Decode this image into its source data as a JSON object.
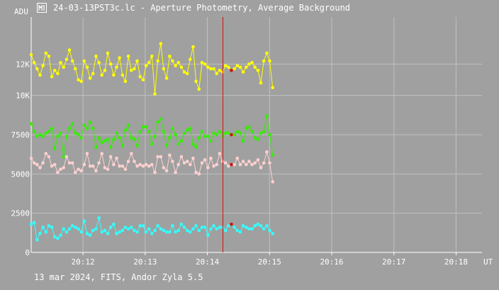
{
  "window": {
    "title": "24-03-13PST3c.lc - Aperture Photometry, Average Background",
    "icon": "photometry-app-icon"
  },
  "footer": {
    "caption": "13 mar 2024, FITS, Andor Zyla 5.5"
  },
  "colors": {
    "background": "#a0a0a0",
    "grid": "#c0c0c0",
    "axis": "#ffffff",
    "text": "#ffffff",
    "cursor": "#d01010",
    "marker": "#d01010"
  },
  "chart_data": {
    "type": "scatter",
    "title": "",
    "ylabel": "ADU",
    "xlabel": "UT",
    "ylim": [
      0,
      15000
    ],
    "xlim": [
      "20:11:10",
      "20:18:25"
    ],
    "y_ticks": [
      0,
      2500,
      5000,
      7500,
      10000,
      12000
    ],
    "y_tick_labels": [
      "0",
      "2500",
      "5000",
      "7500",
      "10K",
      "12K"
    ],
    "x_ticks": [
      "20:12",
      "20:13",
      "20:14",
      "20:15",
      "20:16",
      "20:17",
      "20:18"
    ],
    "x_tick_labels": [
      "20:12",
      "20:13",
      "20:14",
      "20:15",
      "20:16",
      "20:17",
      "20:18"
    ],
    "x_start": "20:11:10",
    "x_end": "20:15:03",
    "cursor_x": "20:14:15",
    "grid": true,
    "legend": "none",
    "series": [
      {
        "color": "#ffff00",
        "values": [
          12600,
          12100,
          11700,
          11300,
          11900,
          12700,
          12500,
          11200,
          11600,
          11400,
          12100,
          11800,
          12300,
          12900,
          12200,
          11700,
          11000,
          10900,
          12200,
          11800,
          11100,
          11400,
          12500,
          12100,
          11300,
          11600,
          12700,
          12000,
          11300,
          11800,
          12400,
          11300,
          10900,
          12500,
          11600,
          11700,
          12200,
          11200,
          11000,
          11900,
          12100,
          12500,
          10100,
          12200,
          13300,
          11700,
          11100,
          12500,
          12200,
          11900,
          12100,
          11800,
          11500,
          11400,
          12300,
          13100,
          10900,
          10400,
          12100,
          12000,
          11800,
          11700,
          11700,
          11400,
          11600,
          11500,
          11900,
          11800,
          11600,
          11700,
          11900,
          11800,
          11500,
          11800,
          12000,
          12100,
          11800,
          11600,
          10800,
          12200,
          12700,
          12200,
          10500
        ]
      },
      {
        "color": "#33ee00",
        "values": [
          8200,
          7700,
          7400,
          7500,
          7400,
          7600,
          7700,
          7900,
          6600,
          7400,
          7600,
          6100,
          7400,
          7900,
          8200,
          7600,
          7500,
          7300,
          8100,
          7900,
          8300,
          7900,
          6700,
          7300,
          7000,
          7100,
          7200,
          6700,
          7200,
          7600,
          7300,
          6800,
          7800,
          8100,
          7300,
          7200,
          6800,
          7700,
          8000,
          8000,
          7700,
          6900,
          7400,
          8300,
          8500,
          7700,
          6800,
          7300,
          7900,
          7500,
          6900,
          7100,
          7600,
          7800,
          7900,
          6900,
          6700,
          7300,
          7700,
          7400,
          7400,
          7100,
          7600,
          7500,
          7700,
          7400,
          7600,
          7600,
          7500,
          7500,
          7700,
          7600,
          7100,
          7900,
          8000,
          7700,
          7300,
          7200,
          7600,
          7700,
          8700,
          7500,
          6200
        ]
      },
      {
        "color": "#ffd0d0",
        "values": [
          6000,
          5700,
          5600,
          5400,
          5700,
          6300,
          6100,
          5500,
          5600,
          5100,
          5300,
          5400,
          6100,
          5700,
          5700,
          5100,
          5300,
          5200,
          5600,
          6300,
          5500,
          5500,
          5200,
          5700,
          6300,
          5400,
          5300,
          6100,
          5600,
          6000,
          5500,
          5500,
          5300,
          5800,
          6300,
          5800,
          5500,
          5600,
          5500,
          5600,
          5500,
          5600,
          5100,
          6100,
          6100,
          5400,
          5200,
          6200,
          5800,
          5100,
          5600,
          6100,
          5700,
          5800,
          5600,
          6000,
          5100,
          5000,
          5700,
          5900,
          5400,
          6000,
          5500,
          5600,
          6300,
          5800,
          5700,
          5500,
          5600,
          5600,
          6000,
          5600,
          5800,
          5600,
          5800,
          5600,
          5700,
          5900,
          5400,
          5700,
          6400,
          5700,
          4500
        ]
      },
      {
        "color": "#33ffff",
        "values": [
          1800,
          1900,
          800,
          1200,
          1600,
          1300,
          1700,
          1600,
          1000,
          900,
          1100,
          1500,
          1300,
          1500,
          1700,
          1600,
          1500,
          1300,
          2000,
          1200,
          1100,
          1400,
          1500,
          2200,
          1300,
          1400,
          1200,
          1600,
          1800,
          1200,
          1300,
          1400,
          1600,
          1500,
          1600,
          1400,
          1300,
          1700,
          1700,
          1300,
          1500,
          1200,
          1400,
          1700,
          1500,
          1400,
          1300,
          1300,
          1700,
          1300,
          1400,
          1800,
          1600,
          1400,
          1300,
          1500,
          1700,
          1400,
          1600,
          1600,
          1100,
          1500,
          1700,
          1500,
          1600,
          1600,
          1400,
          1700,
          1800,
          1600,
          1400,
          1300,
          1700,
          1600,
          1500,
          1500,
          1700,
          1800,
          1700,
          1500,
          1700,
          1400,
          1200
        ]
      }
    ],
    "highlight_index": 68
  }
}
